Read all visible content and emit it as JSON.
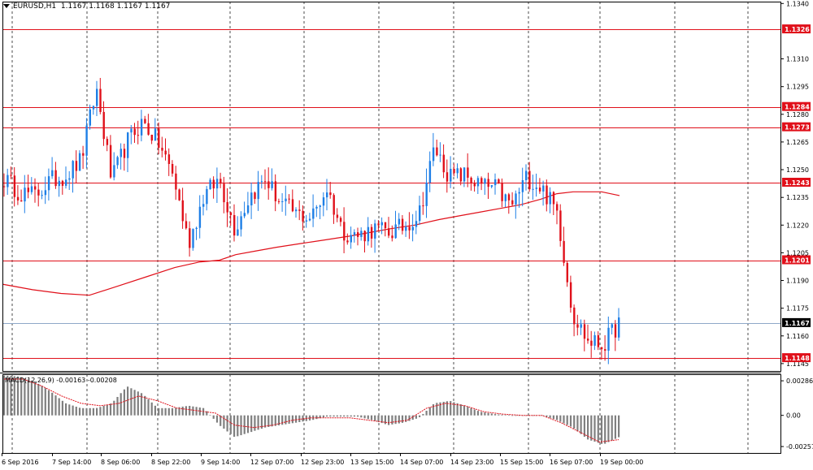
{
  "header": {
    "symbol": "EURUSD,H1",
    "ohlc": "1.1167 1.1168 1.1167 1.1167"
  },
  "macd": {
    "label": "MACD(12,26,9) -0.00163 -0.00208",
    "axis": [
      "0.00286",
      "0.00",
      "-0.00257"
    ]
  },
  "colors": {
    "bull": "#1e7fe6",
    "bear": "#e0101a",
    "level_line": "#e0101a",
    "ma_line": "#e0101a",
    "current_price_line": "#8ea8c8",
    "histogram": "#7f7f7f",
    "signal_line": "#e0101a",
    "grid": "#000000",
    "axis_tag_bg": "#e0101a"
  },
  "chart_data": {
    "type": "candlestick",
    "price_ticks": [
      "1.1340",
      "1.1310",
      "1.1295",
      "1.1280",
      "1.1265",
      "1.1250",
      "1.1235",
      "1.1220",
      "1.1205",
      "1.1190",
      "1.1175",
      "1.1160",
      "1.1145"
    ],
    "ylim": [
      1.1141,
      1.1341
    ],
    "levels": [
      1.1326,
      1.1284,
      1.1273,
      1.1243,
      1.1201,
      1.1148
    ],
    "level_labels": [
      "1.1326",
      "1.1284",
      "1.1273",
      "1.1243",
      "1.1201",
      "1.1148"
    ],
    "current_price": 1.1167,
    "current_price_label": "1.1167",
    "time_labels": [
      "6 Sep 2016",
      "7 Sep 14:00",
      "8 Sep 06:00",
      "8 Sep 22:00",
      "9 Sep 14:00",
      "12 Sep 07:00",
      "12 Sep 23:00",
      "13 Sep 15:00",
      "14 Sep 07:00",
      "14 Sep 23:00",
      "15 Sep 15:00",
      "16 Sep 07:00",
      "19 Sep 00:00"
    ],
    "close_anchors": [
      1.1245,
      1.1238,
      1.1236,
      1.1244,
      1.1247,
      1.1255,
      1.1294,
      1.1244,
      1.1265,
      1.1276,
      1.1265,
      1.1247,
      1.121,
      1.1236,
      1.1245,
      1.1218,
      1.1236,
      1.1245,
      1.1232,
      1.1226,
      1.1224,
      1.124,
      1.1217,
      1.1214,
      1.1218,
      1.1216,
      1.1219,
      1.1226,
      1.1262,
      1.1246,
      1.1247,
      1.1241,
      1.124,
      1.123,
      1.1246,
      1.124,
      1.1227,
      1.1172,
      1.1157,
      1.1155,
      1.1167
    ],
    "ma_values": [
      1.1188,
      1.1185,
      1.1183,
      1.1182,
      1.1187,
      1.1192,
      1.1197,
      1.12,
      1.1201,
      1.1204,
      1.1206,
      1.1208,
      1.121,
      1.1212,
      1.1214,
      1.1216,
      1.1218,
      1.122,
      1.1223,
      1.1225,
      1.1227,
      1.1229,
      1.1231,
      1.1234,
      1.1237,
      1.1238,
      1.1238,
      1.1236
    ],
    "macd_ylim": [
      -0.0031,
      0.0034
    ],
    "macd_hist_anchors": [
      0.0033,
      0.0032,
      0.0028,
      0.002,
      0.001,
      0.0006,
      0.0006,
      0.001,
      0.0024,
      0.0018,
      0.0006,
      0.0006,
      0.0008,
      0.0006,
      -0.0008,
      -0.0018,
      -0.0014,
      -0.001,
      -0.0008,
      -0.0006,
      -0.0004,
      -0.0001,
      -0.0001,
      -0.0001,
      -0.0004,
      -0.0008,
      -0.0006,
      -0.0002,
      0.001,
      0.0012,
      0.0008,
      0.0003,
      0.0001,
      0.0,
      0.0,
      0.0,
      -0.0004,
      -0.001,
      -0.002,
      -0.0024,
      -0.0018
    ],
    "macd_signal_anchors": [
      0.003,
      0.003,
      0.0024,
      0.0016,
      0.001,
      0.0008,
      0.001,
      0.0016,
      0.0012,
      0.0006,
      0.0004,
      0.0002,
      -0.0008,
      -0.001,
      -0.0008,
      -0.0004,
      -0.0002,
      -0.0002,
      -0.0002,
      -0.0004,
      -0.0006,
      -0.0004,
      0.0006,
      0.001,
      0.0008,
      0.0003,
      0.0001,
      0.0,
      0.0,
      -0.0006,
      -0.0014,
      -0.0022,
      -0.002
    ]
  }
}
